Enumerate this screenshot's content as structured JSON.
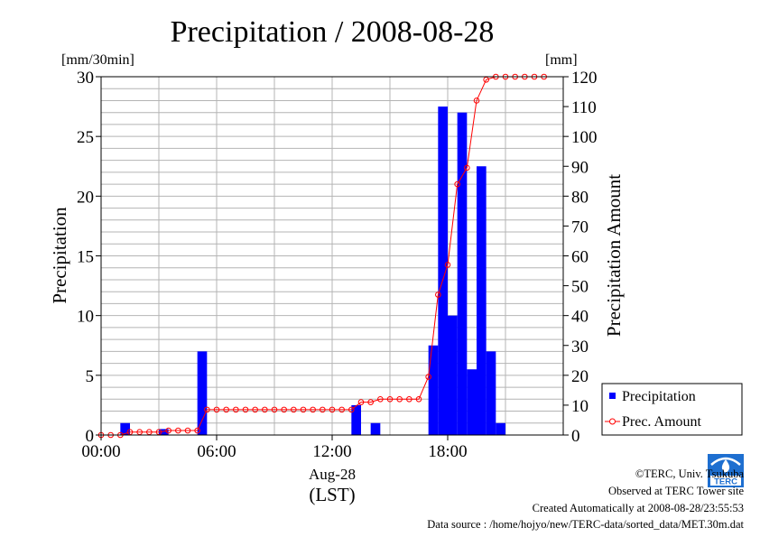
{
  "chart_data": {
    "type": "bar",
    "title": "Precipitation / 2008-08-28",
    "left_unit": "[mm/30min]",
    "right_unit": "[mm]",
    "ylabel": "Precipitation",
    "y2label": "Precipitation Amount",
    "xlabel_date": "Aug-28",
    "xlabel_zone": "(LST)",
    "ylim": [
      0,
      30
    ],
    "y2lim": [
      0,
      120
    ],
    "xlim_hours": [
      0,
      24
    ],
    "yticks": [
      "0",
      "5",
      "10",
      "15",
      "20",
      "25",
      "30"
    ],
    "y2ticks": [
      "0",
      "10",
      "20",
      "30",
      "40",
      "50",
      "60",
      "70",
      "80",
      "90",
      "100",
      "110",
      "120"
    ],
    "xticks": [
      {
        "hour": 0,
        "label": "00:00"
      },
      {
        "hour": 6,
        "label": "06:00"
      },
      {
        "hour": 12,
        "label": "12:00"
      },
      {
        "hour": 18,
        "label": "18:00"
      }
    ],
    "grid": true,
    "legend_position": "right, lower",
    "series": [
      {
        "name": "Precipitation",
        "kind": "bar",
        "color": "#0000ff",
        "start_hours": [
          0,
          0.5,
          1,
          1.5,
          2,
          2.5,
          3,
          3.5,
          4,
          4.5,
          5,
          5.5,
          6,
          6.5,
          7,
          7.5,
          8,
          8.5,
          9,
          9.5,
          10,
          10.5,
          11,
          11.5,
          12,
          12.5,
          13,
          13.5,
          14,
          14.5,
          15,
          15.5,
          16,
          16.5,
          17,
          17.5,
          18,
          18.5,
          19,
          19.5,
          20,
          20.5,
          21,
          21.5,
          22,
          22.5,
          23,
          23.5
        ],
        "values": [
          0,
          0,
          1.0,
          0,
          0,
          0,
          0.5,
          0,
          0,
          0,
          7.0,
          0,
          0,
          0,
          0,
          0,
          0,
          0,
          0,
          0,
          0,
          0,
          0,
          0,
          0,
          0,
          2.5,
          0,
          1.0,
          0,
          0,
          0,
          0,
          0,
          7.5,
          27.5,
          10.0,
          27.0,
          5.5,
          22.5,
          7.0,
          1.0,
          0,
          0,
          0,
          0,
          0,
          0
        ]
      },
      {
        "name": "Prec. Amount",
        "kind": "line",
        "color": "#ff0000",
        "x_hours": [
          0,
          0.5,
          1,
          1.5,
          2,
          2.5,
          3,
          3.5,
          4,
          4.5,
          5,
          5.5,
          6,
          6.5,
          7,
          7.5,
          8,
          8.5,
          9,
          9.5,
          10,
          10.5,
          11,
          11.5,
          12,
          12.5,
          13,
          13.5,
          14,
          14.5,
          15,
          15.5,
          16,
          16.5,
          17,
          17.5,
          18,
          18.5,
          19,
          19.5,
          20,
          20.5,
          21,
          21.5,
          22,
          22.5,
          23
        ],
        "values": [
          0,
          0,
          0,
          1,
          1,
          1,
          1,
          1.5,
          1.5,
          1.5,
          1.5,
          8.5,
          8.5,
          8.5,
          8.5,
          8.5,
          8.5,
          8.5,
          8.5,
          8.5,
          8.5,
          8.5,
          8.5,
          8.5,
          8.5,
          8.5,
          8.5,
          11,
          11,
          12,
          12,
          12,
          12,
          12,
          19.5,
          47,
          57,
          84,
          89.5,
          112,
          119,
          120,
          120,
          120,
          120,
          120,
          120
        ]
      }
    ]
  },
  "footer": {
    "copyright": "©TERC, Univ. Tsukuba",
    "site": "Observed at TERC Tower site",
    "created": "Created Automatically at 2008-08-28/23:55:53",
    "source": "Data source : /home/hojyo/new/TERC-data/sorted_data/MET.30m.dat",
    "logo_text": "TERC"
  }
}
